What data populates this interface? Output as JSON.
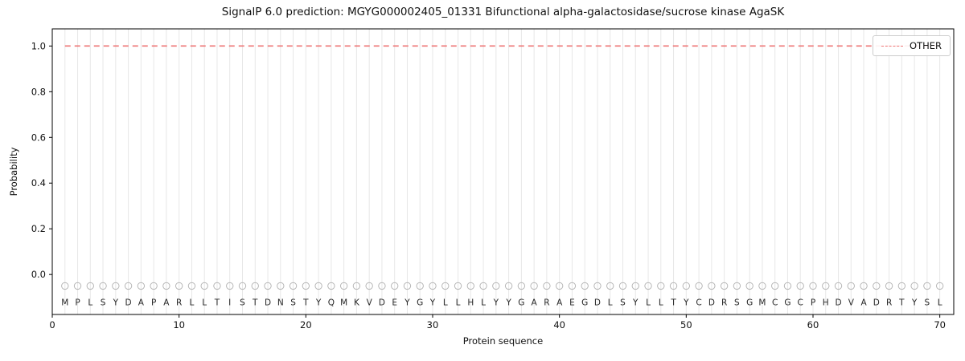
{
  "chart_data": {
    "type": "line",
    "title": "SignalP 6.0 prediction: MGYG000002405_01331 Bifunctional alpha-galactosidase/sucrose kinase AgaSK",
    "xlabel": "Protein sequence",
    "ylabel": "Probability",
    "xlim": [
      0,
      71.1
    ],
    "ylim": [
      -0.175,
      1.075
    ],
    "xticks": [
      0,
      10,
      20,
      30,
      40,
      50,
      60,
      70
    ],
    "yticks": [
      0.0,
      0.2,
      0.4,
      0.6,
      0.8,
      1.0
    ],
    "grid": "vertical-line-per-residue",
    "legend_position": "upper-right",
    "residues": [
      "M",
      "P",
      "L",
      "S",
      "Y",
      "D",
      "A",
      "P",
      "A",
      "R",
      "L",
      "L",
      "T",
      "I",
      "S",
      "T",
      "D",
      "N",
      "S",
      "T",
      "Y",
      "Q",
      "M",
      "K",
      "V",
      "D",
      "E",
      "Y",
      "G",
      "Y",
      "L",
      "L",
      "H",
      "L",
      "Y",
      "Y",
      "G",
      "A",
      "R",
      "A",
      "E",
      "G",
      "D",
      "L",
      "S",
      "Y",
      "L",
      "L",
      "T",
      "Y",
      "C",
      "D",
      "R",
      "S",
      "G",
      "M",
      "C",
      "G",
      "C",
      "P",
      "H",
      "D",
      "V",
      "A",
      "D",
      "R",
      "T",
      "Y",
      "S",
      "L"
    ],
    "series": [
      {
        "name": "OTHER",
        "color": "#ee7575",
        "style": "dashed",
        "x_start": 1,
        "values": [
          1.0,
          1.0,
          1.0,
          1.0,
          1.0,
          1.0,
          1.0,
          1.0,
          1.0,
          1.0,
          1.0,
          1.0,
          1.0,
          1.0,
          1.0,
          1.0,
          1.0,
          1.0,
          1.0,
          1.0,
          1.0,
          1.0,
          1.0,
          1.0,
          1.0,
          1.0,
          1.0,
          1.0,
          1.0,
          1.0,
          1.0,
          1.0,
          1.0,
          1.0,
          1.0,
          1.0,
          1.0,
          1.0,
          1.0,
          1.0,
          1.0,
          1.0,
          1.0,
          1.0,
          1.0,
          1.0,
          1.0,
          1.0,
          1.0,
          1.0,
          1.0,
          1.0,
          1.0,
          1.0,
          1.0,
          1.0,
          1.0,
          1.0,
          1.0,
          1.0,
          1.0,
          1.0,
          1.0,
          1.0,
          1.0,
          1.0,
          1.0,
          1.0,
          1.0,
          1.0
        ]
      }
    ],
    "marker_y": -0.05,
    "letter_y": -0.135,
    "colors": {
      "frame": "#000000",
      "grid": "#e7e7e7",
      "marker": "#b5b5b5",
      "letter": "#262626",
      "tick_label": "#111111"
    }
  }
}
